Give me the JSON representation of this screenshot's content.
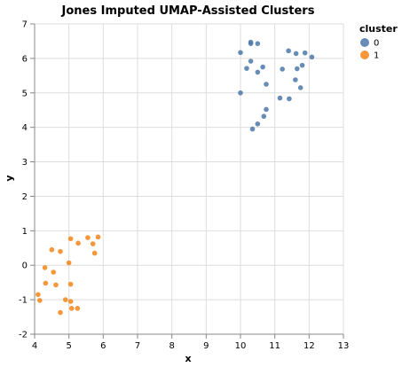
{
  "chart_data": {
    "type": "scatter",
    "title": "Jones Imputed UMAP-Assisted Clusters",
    "xlabel": "x",
    "ylabel": "y",
    "xlim": [
      4,
      13
    ],
    "ylim": [
      -2,
      7
    ],
    "x_ticks": [
      4,
      5,
      6,
      7,
      8,
      9,
      10,
      11,
      12,
      13
    ],
    "y_ticks": [
      -2,
      -1,
      0,
      1,
      2,
      3,
      4,
      5,
      6,
      7
    ],
    "grid": true,
    "legend": {
      "title": "cluster",
      "placement": "top-right",
      "entries": [
        {
          "label": "0",
          "color": "#4c78a8"
        },
        {
          "label": "1",
          "color": "#f58518"
        }
      ]
    },
    "series": [
      {
        "name": "0",
        "color": "#4c78a8",
        "points": [
          [
            10.3,
            6.47
          ],
          [
            10.3,
            6.43
          ],
          [
            10.5,
            6.43
          ],
          [
            10.0,
            6.17
          ],
          [
            11.4,
            6.22
          ],
          [
            11.62,
            6.14
          ],
          [
            11.88,
            6.16
          ],
          [
            12.08,
            6.04
          ],
          [
            10.3,
            5.92
          ],
          [
            10.65,
            5.75
          ],
          [
            10.18,
            5.71
          ],
          [
            11.22,
            5.69
          ],
          [
            11.8,
            5.8
          ],
          [
            11.65,
            5.7
          ],
          [
            10.5,
            5.6
          ],
          [
            11.6,
            5.38
          ],
          [
            10.75,
            5.25
          ],
          [
            11.75,
            5.15
          ],
          [
            10.0,
            5.0
          ],
          [
            11.15,
            4.85
          ],
          [
            11.42,
            4.83
          ],
          [
            10.75,
            4.52
          ],
          [
            10.68,
            4.32
          ],
          [
            10.5,
            4.1
          ],
          [
            10.35,
            3.95
          ]
        ]
      },
      {
        "name": "1",
        "color": "#f58518",
        "points": [
          [
            5.05,
            0.77
          ],
          [
            5.55,
            0.8
          ],
          [
            5.85,
            0.82
          ],
          [
            5.27,
            0.64
          ],
          [
            5.7,
            0.62
          ],
          [
            4.5,
            0.45
          ],
          [
            4.75,
            0.4
          ],
          [
            5.75,
            0.35
          ],
          [
            5.0,
            0.07
          ],
          [
            4.3,
            -0.07
          ],
          [
            4.55,
            -0.2
          ],
          [
            4.32,
            -0.52
          ],
          [
            4.62,
            -0.57
          ],
          [
            5.05,
            -0.55
          ],
          [
            4.1,
            -0.85
          ],
          [
            4.15,
            -1.02
          ],
          [
            4.9,
            -1.0
          ],
          [
            5.05,
            -1.05
          ],
          [
            5.08,
            -1.25
          ],
          [
            5.25,
            -1.25
          ],
          [
            4.75,
            -1.37
          ]
        ]
      }
    ]
  }
}
